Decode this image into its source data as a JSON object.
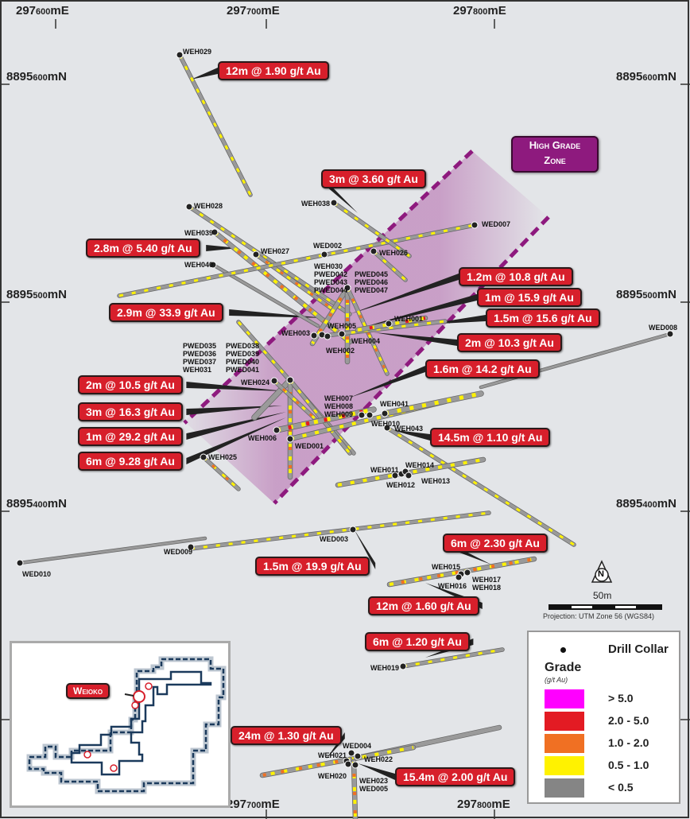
{
  "coords": {
    "easting_top": [
      {
        "pre": "297",
        "big": "600",
        "post": "mE"
      },
      {
        "pre": "297",
        "big": "700",
        "post": "mE"
      },
      {
        "pre": "297",
        "big": "800",
        "post": "mE"
      }
    ],
    "easting_bottom": [
      {
        "pre": "297",
        "big": "700",
        "post": "mE"
      },
      {
        "pre": "297",
        "big": "800",
        "post": "mE"
      }
    ],
    "northing": [
      {
        "pre": "8895",
        "big": "600",
        "post": "mN"
      },
      {
        "pre": "8895",
        "big": "500",
        "post": "mN"
      },
      {
        "pre": "8895",
        "big": "400",
        "post": "mN"
      }
    ]
  },
  "zone_label": {
    "line1": "High Grade",
    "line2": "Zone",
    "color": "#8e1a7e"
  },
  "holes": [
    "WEH029",
    "WEH028",
    "WEH039",
    "WEH027",
    "WEH040",
    "WED002",
    "WED007",
    "WEH038",
    "WEH026",
    "WEH030\nPWED042\nPWED043\nPWED044",
    "PWED045\nPWED046\nPWED047",
    "WEH003",
    "WEH005",
    "WEH001",
    "WEH002",
    "WEH004",
    "WED008",
    "PWED035\nPWED036\nPWED037\nWEH031",
    "PWED038\nPWED039\nPWED040\nPWED041",
    "WEH024",
    "WEH007\nWEH008\nWEH009",
    "WEH041",
    "WEH010",
    "WEH043",
    "WEH006",
    "WED001",
    "WEH025",
    "WEH011",
    "WEH014",
    "WEH012",
    "WEH013",
    "WED003",
    "WED009",
    "WED010",
    "WEH015",
    "WEH016",
    "WEH017\nWEH018",
    "WEH019",
    "WED004",
    "WEH021",
    "WEH022",
    "WEH020",
    "WEH023\nWED005"
  ],
  "intercepts": [
    "12m @ 1.90 g/t Au",
    "3m @ 3.60 g/t Au",
    "2.8m @ 5.40 g/t Au",
    "1.2m @ 10.8 g/t Au",
    "1m @ 15.9 g/t Au",
    "2.9m @ 33.9 g/t Au",
    "1.5m @ 15.6 g/t Au",
    "2m @ 10.3 g/t Au",
    "1.6m @ 14.2 g/t Au",
    "2m @ 10.5 g/t Au",
    "3m @ 16.3 g/t Au",
    "14.5m @ 1.10 g/t Au",
    "1m @ 29.2 g/t Au",
    "6m @ 9.28 g/t Au",
    "6m @ 2.30 g/t Au",
    "1.5m @ 19.9 g/t Au",
    "12m @ 1.60 g/t Au",
    "6m @ 1.20 g/t Au",
    "24m @ 1.30 g/t Au",
    "15.4m @ 2.00 g/t Au"
  ],
  "scale": {
    "label": "50m",
    "projection": "Projection: UTM Zone 56 (WGS84)",
    "north": "N"
  },
  "legend": {
    "collar": "Drill Collar",
    "grade_title": "Grade",
    "grade_unit": "(g/t Au)",
    "classes": [
      {
        "label": "> 5.0",
        "color": "#ff00ff"
      },
      {
        "label": "2.0 - 5.0",
        "color": "#e31b23"
      },
      {
        "label": "1.0 - 2.0",
        "color": "#f07023"
      },
      {
        "label": "0.5 - 1.0",
        "color": "#fff200"
      },
      {
        "label": "< 0.5",
        "color": "#858585"
      }
    ]
  },
  "inset": {
    "label": "Weioko"
  }
}
